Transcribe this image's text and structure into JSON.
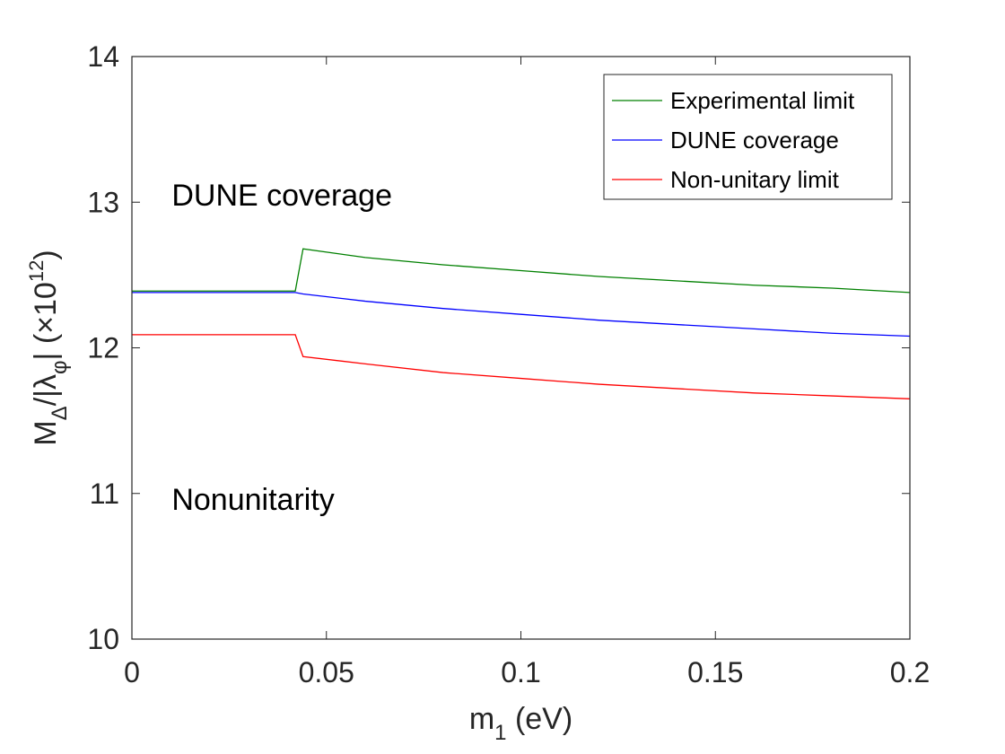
{
  "chart_data": {
    "type": "line",
    "xlabel": "m",
    "xlabel_sub": "1",
    "xlabel_unit": " (eV)",
    "ylabel_parts": [
      "M",
      "Δ",
      "/|λ",
      "φ",
      "|  (×10",
      "12",
      ")"
    ],
    "xlim": [
      0,
      0.2
    ],
    "ylim": [
      10,
      14
    ],
    "x_ticks": [
      0,
      0.05,
      0.1,
      0.15,
      0.2
    ],
    "x_tick_labels": [
      "0",
      "0.05",
      "0.1",
      "0.15",
      "0.2"
    ],
    "y_ticks": [
      10,
      11,
      12,
      13,
      14
    ],
    "y_tick_labels": [
      "10",
      "11",
      "12",
      "13",
      "14"
    ],
    "grid": false,
    "legend_position": "top-right",
    "series": [
      {
        "name": "Experimental limit",
        "color": "#008000",
        "x": [
          0,
          0.02,
          0.042,
          0.044,
          0.06,
          0.08,
          0.1,
          0.12,
          0.14,
          0.16,
          0.18,
          0.2
        ],
        "y": [
          12.39,
          12.39,
          12.39,
          12.68,
          12.62,
          12.57,
          12.53,
          12.49,
          12.46,
          12.43,
          12.41,
          12.38
        ]
      },
      {
        "name": "DUNE coverage",
        "color": "#0000ff",
        "x": [
          0,
          0.02,
          0.042,
          0.044,
          0.06,
          0.08,
          0.1,
          0.12,
          0.14,
          0.16,
          0.18,
          0.2
        ],
        "y": [
          12.38,
          12.38,
          12.38,
          12.37,
          12.32,
          12.27,
          12.23,
          12.19,
          12.16,
          12.13,
          12.1,
          12.08
        ]
      },
      {
        "name": "Non-unitary limit",
        "color": "#ff0000",
        "x": [
          0,
          0.02,
          0.042,
          0.044,
          0.06,
          0.08,
          0.1,
          0.12,
          0.14,
          0.16,
          0.18,
          0.2
        ],
        "y": [
          12.09,
          12.09,
          12.09,
          11.94,
          11.89,
          11.83,
          11.79,
          11.75,
          11.72,
          11.69,
          11.67,
          11.65
        ]
      }
    ],
    "annotations": [
      {
        "text": "DUNE coverage",
        "x": 0.01,
        "y": 13.05
      },
      {
        "text": "Nonunitarity",
        "x": 0.01,
        "y": 10.96
      }
    ]
  }
}
